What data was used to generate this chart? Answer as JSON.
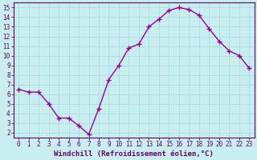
{
  "x": [
    0,
    1,
    2,
    3,
    4,
    5,
    6,
    7,
    8,
    9,
    10,
    11,
    12,
    13,
    14,
    15,
    16,
    17,
    18,
    19,
    20,
    21,
    22,
    23
  ],
  "y": [
    6.5,
    6.2,
    6.2,
    5.0,
    3.5,
    3.5,
    2.7,
    1.8,
    4.5,
    7.5,
    9.0,
    10.8,
    11.2,
    13.0,
    13.8,
    14.7,
    15.0,
    14.8,
    14.2,
    12.8,
    11.5,
    10.5,
    10.0,
    8.7
  ],
  "line_color": "#990099",
  "marker": "+",
  "marker_size": 4,
  "marker_lw": 1.0,
  "xlabel": "Windchill (Refroidissement éolien,°C)",
  "xlim": [
    -0.5,
    23.5
  ],
  "ylim": [
    1.5,
    15.5
  ],
  "yticks": [
    2,
    3,
    4,
    5,
    6,
    7,
    8,
    9,
    10,
    11,
    12,
    13,
    14,
    15
  ],
  "xticks": [
    0,
    1,
    2,
    3,
    4,
    5,
    6,
    7,
    8,
    9,
    10,
    11,
    12,
    13,
    14,
    15,
    16,
    17,
    18,
    19,
    20,
    21,
    22,
    23
  ],
  "background_color": "#c8eef0",
  "grid_color": "#aadddd",
  "axis_color": "#660066",
  "tick_color": "#660066",
  "label_fontsize": 6.5,
  "tick_fontsize": 5.5,
  "linewidth": 1.0
}
